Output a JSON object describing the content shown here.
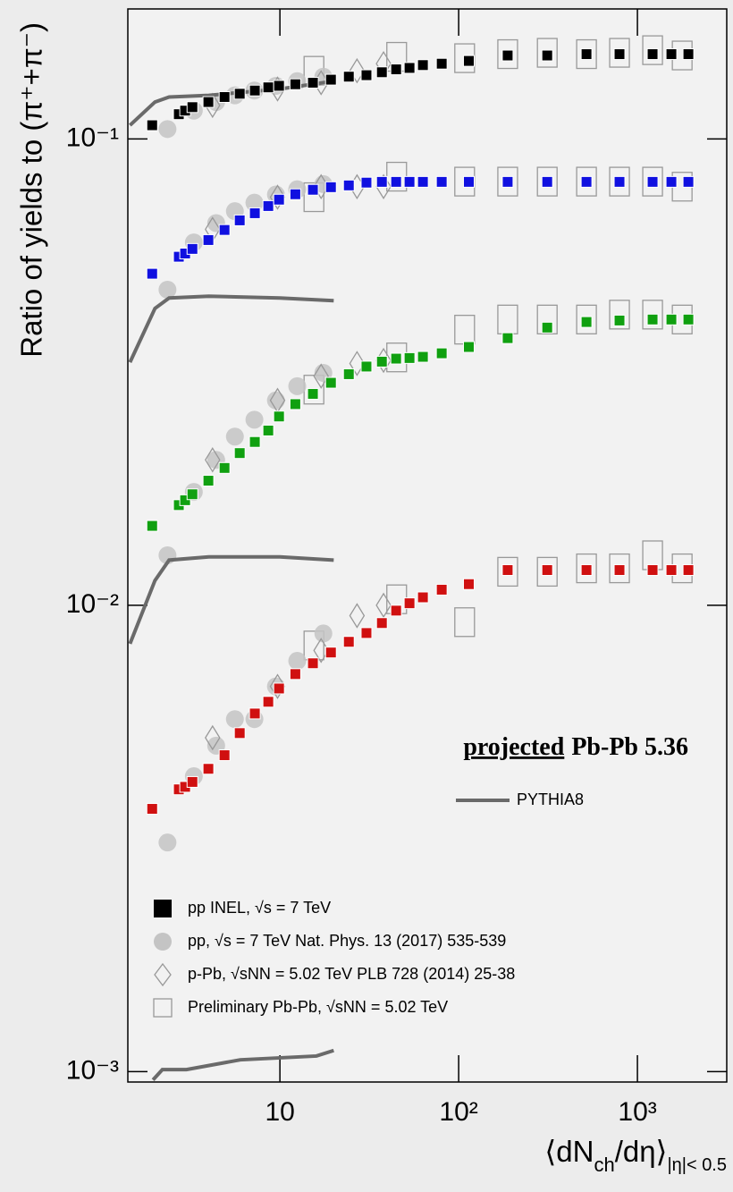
{
  "chart_data": {
    "type": "scatter",
    "ylabel": "Ratio of yields to (π⁺+π⁻)",
    "xlabel": {
      "main": "⟨dN",
      "sub": "ch",
      "rest": "/dη⟩",
      "range": "|η|< 0.5"
    },
    "annotation": [
      "projected",
      "Pb-Pb 5.36"
    ],
    "log_x": true,
    "log_y": true,
    "xlim": [
      1.41,
      3160
    ],
    "ylim": [
      0.00095,
      0.19
    ],
    "xticks": [
      10,
      {
        "value": 100,
        "label": "10²"
      },
      {
        "value": 1000,
        "label": "10³"
      }
    ],
    "yticks": [
      {
        "value": 0.001,
        "label": "10⁻³"
      },
      {
        "value": 0.01,
        "label": "10⁻²"
      },
      {
        "value": 0.1,
        "label": "10⁻¹"
      }
    ],
    "series": [
      {
        "name": "pp INEL, √s = 7 TeV",
        "marker": "square",
        "color": "#000000",
        "groups": [
          {
            "color": "#000000",
            "x": [
              1.93,
              2.72,
              2.95,
              3.24,
              3.98,
              4.9,
              5.96,
              7.24,
              8.61,
              9.89,
              12.2,
              15.3,
              19.3,
              24.3,
              30.5,
              37.2,
              44.7,
              53.1,
              63.1,
              80.4,
              114,
              188,
              313,
              519,
              794,
              1216,
              1549,
              1928
            ],
            "values": [
              0.107,
              0.113,
              0.115,
              0.117,
              0.12,
              0.123,
              0.125,
              0.127,
              0.129,
              0.13,
              0.131,
              0.132,
              0.134,
              0.136,
              0.137,
              0.139,
              0.141,
              0.142,
              0.144,
              0.145,
              0.147,
              0.151,
              0.151,
              0.152,
              0.152,
              0.152,
              0.152,
              0.152
            ]
          },
          {
            "color": "#1010e0",
            "x": [
              1.93,
              2.72,
              2.95,
              3.24,
              3.98,
              4.9,
              5.96,
              7.24,
              8.61,
              9.89,
              12.2,
              15.3,
              19.3,
              24.3,
              30.5,
              37.2,
              44.7,
              53.1,
              63.1,
              80.4,
              114,
              188,
              313,
              519,
              794,
              1216,
              1549,
              1928
            ],
            "values": [
              0.0514,
              0.0559,
              0.0568,
              0.0581,
              0.0607,
              0.0638,
              0.0669,
              0.0693,
              0.0718,
              0.0741,
              0.0761,
              0.0778,
              0.0788,
              0.0795,
              0.0806,
              0.0809,
              0.0809,
              0.0809,
              0.0809,
              0.0809,
              0.0809,
              0.0809,
              0.0809,
              0.0809,
              0.0809,
              0.0809,
              0.0809,
              0.0809
            ]
          },
          {
            "color": "#10a010",
            "x": [
              1.93,
              2.72,
              2.95,
              3.24,
              3.98,
              4.9,
              5.96,
              7.24,
              8.61,
              9.89,
              12.2,
              15.3,
              19.3,
              24.3,
              30.5,
              37.2,
              44.7,
              53.1,
              63.1,
              80.4,
              114,
              188,
              313,
              519,
              794,
              1216,
              1549,
              1928
            ],
            "values": [
              0.0148,
              0.0164,
              0.0168,
              0.0173,
              0.0185,
              0.0197,
              0.0212,
              0.0224,
              0.0237,
              0.0254,
              0.027,
              0.0284,
              0.03,
              0.0313,
              0.0325,
              0.0333,
              0.0338,
              0.0339,
              0.0341,
              0.0347,
              0.0358,
              0.0374,
              0.0394,
              0.0405,
              0.0408,
              0.041,
              0.041,
              0.041
            ]
          },
          {
            "color": "#d01010",
            "x": [
              1.93,
              2.72,
              2.95,
              3.24,
              3.98,
              4.9,
              5.96,
              7.24,
              8.61,
              9.89,
              12.2,
              15.3,
              19.3,
              24.3,
              30.5,
              37.2,
              44.7,
              53.1,
              63.1,
              80.4,
              114,
              188,
              313,
              519,
              794,
              1216,
              1549,
              1928
            ],
            "values": [
              0.00366,
              0.00403,
              0.00408,
              0.00418,
              0.00446,
              0.00477,
              0.00532,
              0.00586,
              0.00621,
              0.00663,
              0.00712,
              0.00751,
              0.00792,
              0.00835,
              0.00872,
              0.00916,
              0.00974,
              0.0101,
              0.0104,
              0.0108,
              0.0111,
              0.0119,
              0.0119,
              0.0119,
              0.0119,
              0.0119,
              0.0119,
              0.0119
            ]
          }
        ]
      },
      {
        "name": "pp, √s = 7 TeV  Nat. Phys. 13 (2017) 535-539",
        "marker": "circle",
        "color": "#c4c4c4",
        "groups": [
          {
            "x": [
              2.35,
              3.3,
              4.4,
              5.6,
              7.2,
              9.5,
              12.5,
              17.5
            ],
            "values": [
              0.105,
              0.115,
              0.12,
              0.124,
              0.127,
              0.13,
              0.133,
              0.136
            ]
          },
          {
            "x": [
              2.35,
              3.3,
              4.4,
              5.6,
              7.2,
              9.5,
              12.5,
              17.5
            ],
            "values": [
              0.0475,
              0.06,
              0.066,
              0.07,
              0.073,
              0.076,
              0.078,
              0.08
            ]
          },
          {
            "x": [
              2.35,
              3.3,
              4.4,
              5.6,
              7.2,
              9.5,
              12.5,
              17.5
            ],
            "values": [
              0.0128,
              0.0175,
              0.0205,
              0.023,
              0.025,
              0.0275,
              0.0295,
              0.0315
            ]
          },
          {
            "x": [
              2.35,
              3.3,
              4.4,
              5.6,
              7.2,
              9.5,
              12.5,
              17.5
            ],
            "values": [
              0.0031,
              0.0043,
              0.005,
              0.0057,
              0.0057,
              0.0067,
              0.0076,
              0.0087
            ]
          }
        ]
      },
      {
        "name": "p-Pb, √sNN = 5.02 TeV  PLB 728 (2014) 25-38",
        "marker": "diamond",
        "color": "#999999",
        "groups": [
          {
            "x": [
              4.2,
              9.7,
              17,
              27,
              38
            ],
            "values": [
              0.118,
              0.128,
              0.132,
              0.14,
              0.145
            ]
          },
          {
            "x": [
              4.2,
              9.7,
              17,
              27,
              38
            ],
            "values": [
              0.064,
              0.075,
              0.079,
              0.079,
              0.079
            ]
          },
          {
            "x": [
              4.2,
              9.7,
              17,
              27,
              38
            ],
            "values": [
              0.0205,
              0.0275,
              0.031,
              0.033,
              0.0335
            ]
          },
          {
            "x": [
              4.2,
              9.7,
              17,
              27,
              38
            ],
            "values": [
              0.0052,
              0.0067,
              0.008,
              0.0095,
              0.01
            ]
          }
        ]
      },
      {
        "name": "Preliminary Pb-Pb, √sNN = 5.02 TeV",
        "marker": "box",
        "color": "#999999",
        "groups": [
          {
            "x": [
              15.5,
              45,
              108,
              188,
              313,
              519,
              794,
              1216,
              1780
            ],
            "values": [
              0.14,
              0.15,
              0.149,
              0.152,
              0.153,
              0.152,
              0.153,
              0.155,
              0.151
            ]
          },
          {
            "x": [
              15.5,
              45,
              108,
              188,
              313,
              519,
              794,
              1216,
              1780
            ],
            "values": [
              0.075,
              0.083,
              0.081,
              0.081,
              0.081,
              0.081,
              0.081,
              0.081,
              0.079
            ]
          },
          {
            "x": [
              15.5,
              45,
              108,
              188,
              313,
              519,
              794,
              1216,
              1780
            ],
            "values": [
              0.029,
              0.034,
              0.039,
              0.041,
              0.041,
              0.041,
              0.042,
              0.042,
              0.041
            ]
          },
          {
            "x": [
              15.5,
              45,
              108,
              188,
              313,
              519,
              794,
              1216,
              1780
            ],
            "values": [
              0.0082,
              0.0103,
              0.0092,
              0.0118,
              0.0118,
              0.012,
              0.012,
              0.0128,
              0.012
            ]
          }
        ]
      },
      {
        "name": "PYTHIA8",
        "marker": "line",
        "color": "#6a6a6a",
        "groups": [
          {
            "x": [
              1.45,
              2.0,
              2.4,
              4.0,
              10,
              20
            ],
            "values": [
              0.107,
              0.12,
              0.123,
              0.124,
              0.128,
              0.133
            ]
          },
          {
            "x": [
              1.45,
              2.0,
              2.4,
              4.0,
              10,
              20
            ],
            "values": [
              0.0332,
              0.0433,
              0.0456,
              0.046,
              0.0456,
              0.045
            ]
          },
          {
            "x": [
              1.45,
              2.0,
              2.4,
              4.0,
              10,
              20
            ],
            "values": [
              0.00827,
              0.0113,
              0.0125,
              0.0127,
              0.0127,
              0.0125
            ]
          },
          {
            "x": [
              1.95,
              2.2,
              3.0,
              6.0,
              16,
              20
            ],
            "values": [
              0.00096,
              0.00101,
              0.00101,
              0.00106,
              0.00108,
              0.00111
            ]
          }
        ]
      }
    ]
  }
}
